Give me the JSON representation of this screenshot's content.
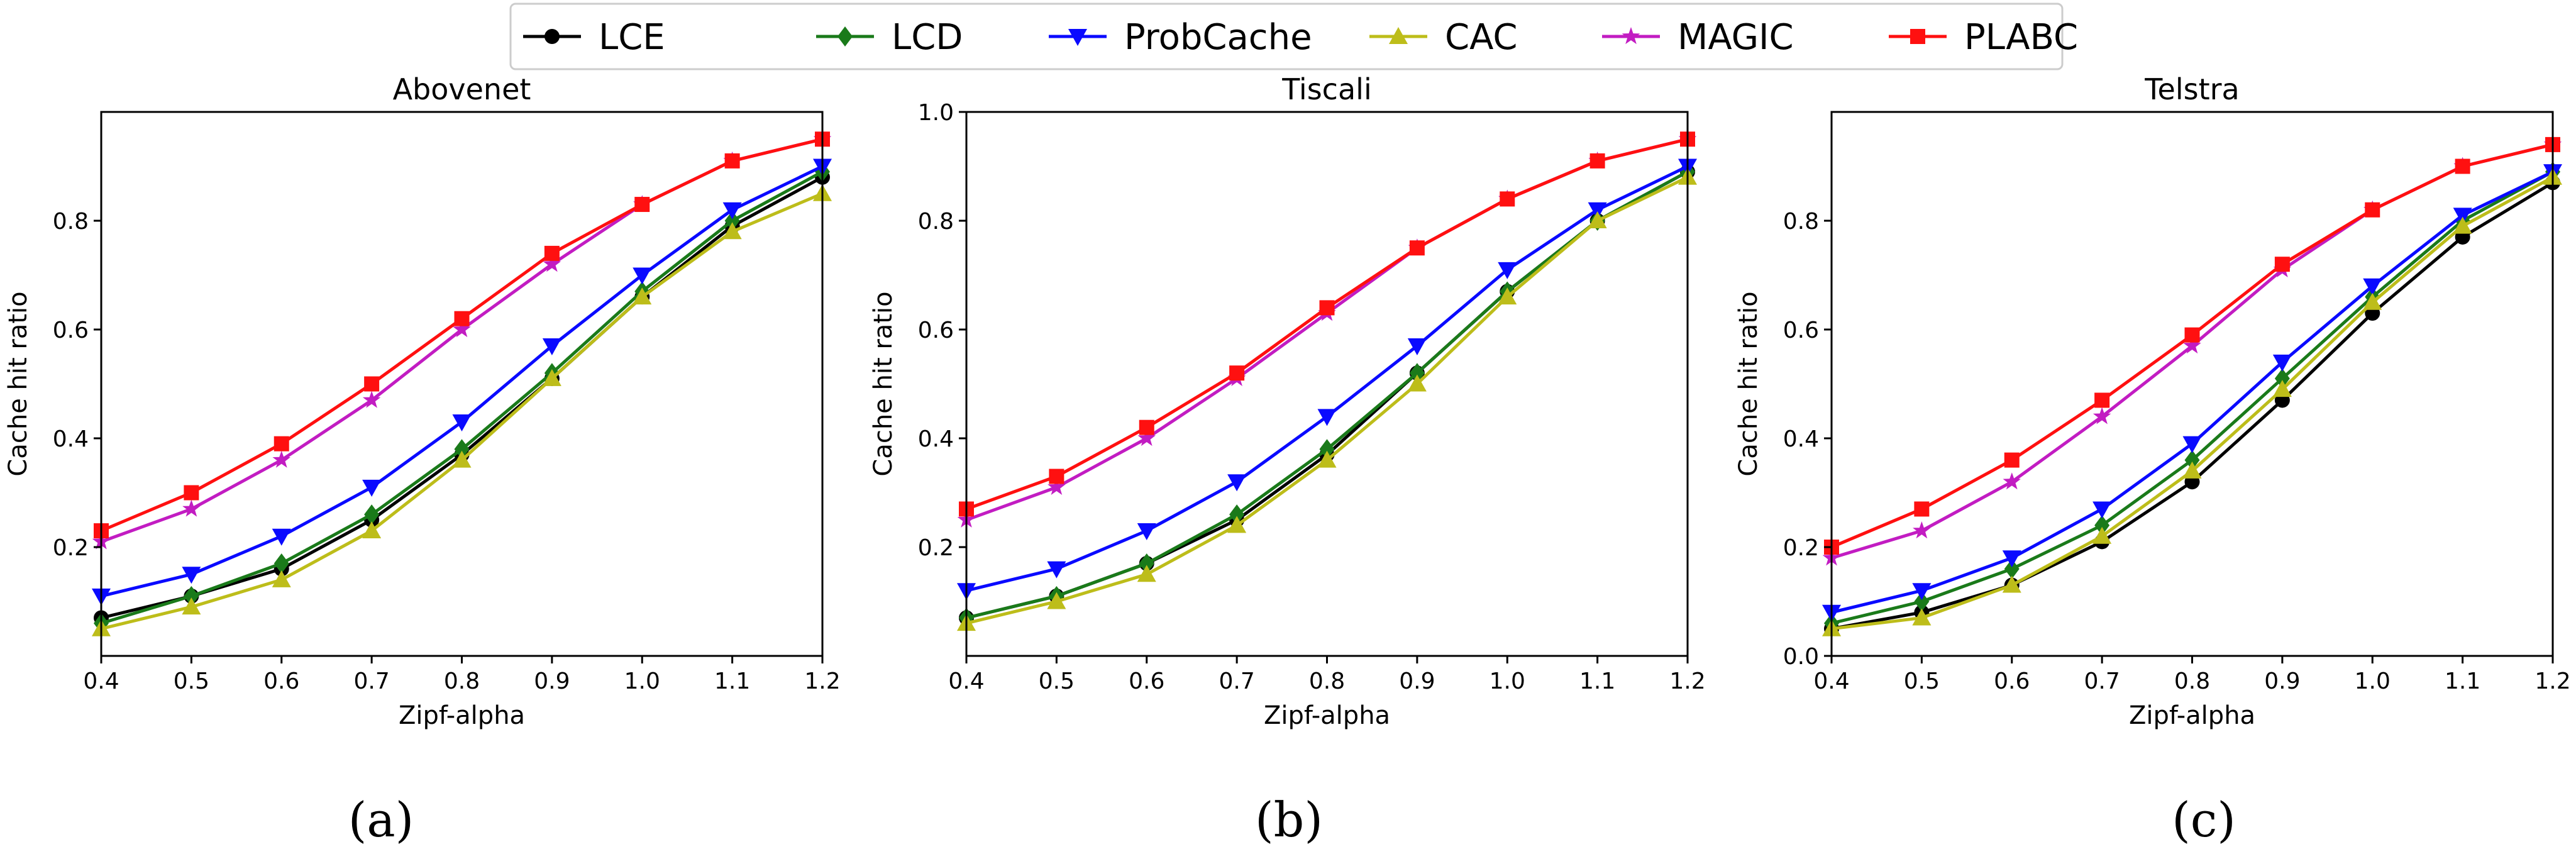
{
  "legend": [
    {
      "name": "LCE",
      "color": "#000000",
      "marker": "circle"
    },
    {
      "name": "LCD",
      "color": "#1a7a1a",
      "marker": "diamond"
    },
    {
      "name": "ProbCache",
      "color": "#0a0aff",
      "marker": "triangle-down"
    },
    {
      "name": "CAC",
      "color": "#bdbd1a",
      "marker": "triangle-up"
    },
    {
      "name": "MAGIC",
      "color": "#c21cc2",
      "marker": "star"
    },
    {
      "name": "PLABC",
      "color": "#ff1010",
      "marker": "square"
    }
  ],
  "chart_data": [
    {
      "type": "line",
      "title": "Abovenet",
      "caption": "(a)",
      "xlabel": "Zipf-alpha",
      "ylabel": "Cache hit ratio",
      "x": [
        0.4,
        0.5,
        0.6,
        0.7,
        0.8,
        0.9,
        1.0,
        1.1,
        1.2
      ],
      "xticks": [
        "0.4",
        "0.5",
        "0.6",
        "0.7",
        "0.8",
        "0.9",
        "1.0",
        "1.1",
        "1.2"
      ],
      "xlim": [
        0.4,
        1.2
      ],
      "ylim": [
        0.0,
        1.0
      ],
      "yticks": [
        "0.2",
        "0.4",
        "0.6",
        "0.8"
      ],
      "grid": false,
      "series": [
        {
          "name": "LCE",
          "values": [
            0.07,
            0.11,
            0.16,
            0.25,
            0.37,
            0.51,
            0.66,
            0.79,
            0.88
          ]
        },
        {
          "name": "LCD",
          "values": [
            0.06,
            0.11,
            0.17,
            0.26,
            0.38,
            0.52,
            0.67,
            0.8,
            0.89
          ]
        },
        {
          "name": "ProbCache",
          "values": [
            0.11,
            0.15,
            0.22,
            0.31,
            0.43,
            0.57,
            0.7,
            0.82,
            0.9
          ]
        },
        {
          "name": "CAC",
          "values": [
            0.05,
            0.09,
            0.14,
            0.23,
            0.36,
            0.51,
            0.66,
            0.78,
            0.85
          ]
        },
        {
          "name": "MAGIC",
          "values": [
            0.21,
            0.27,
            0.36,
            0.47,
            0.6,
            0.72,
            0.83,
            0.91,
            0.95
          ]
        },
        {
          "name": "PLABC",
          "values": [
            0.23,
            0.3,
            0.39,
            0.5,
            0.62,
            0.74,
            0.83,
            0.91,
            0.95
          ]
        }
      ]
    },
    {
      "type": "line",
      "title": "Tiscali",
      "caption": "(b)",
      "xlabel": "Zipf-alpha",
      "ylabel": "Cache hit ratio",
      "x": [
        0.4,
        0.5,
        0.6,
        0.7,
        0.8,
        0.9,
        1.0,
        1.1,
        1.2
      ],
      "xticks": [
        "0.4",
        "0.5",
        "0.6",
        "0.7",
        "0.8",
        "0.9",
        "1.0",
        "1.1",
        "1.2"
      ],
      "xlim": [
        0.4,
        1.2
      ],
      "ylim": [
        0.0,
        1.0
      ],
      "yticks": [
        "0.2",
        "0.4",
        "0.6",
        "0.8",
        "1.0"
      ],
      "grid": false,
      "series": [
        {
          "name": "LCE",
          "values": [
            0.07,
            0.11,
            0.17,
            0.25,
            0.37,
            0.52,
            0.67,
            0.8,
            0.89
          ]
        },
        {
          "name": "LCD",
          "values": [
            0.07,
            0.11,
            0.17,
            0.26,
            0.38,
            0.52,
            0.67,
            0.8,
            0.89
          ]
        },
        {
          "name": "ProbCache",
          "values": [
            0.12,
            0.16,
            0.23,
            0.32,
            0.44,
            0.57,
            0.71,
            0.82,
            0.9
          ]
        },
        {
          "name": "CAC",
          "values": [
            0.06,
            0.1,
            0.15,
            0.24,
            0.36,
            0.5,
            0.66,
            0.8,
            0.88
          ]
        },
        {
          "name": "MAGIC",
          "values": [
            0.25,
            0.31,
            0.4,
            0.51,
            0.63,
            0.75,
            0.84,
            0.91,
            0.95
          ]
        },
        {
          "name": "PLABC",
          "values": [
            0.27,
            0.33,
            0.42,
            0.52,
            0.64,
            0.75,
            0.84,
            0.91,
            0.95
          ]
        }
      ]
    },
    {
      "type": "line",
      "title": "Telstra",
      "caption": "(c)",
      "xlabel": "Zipf-alpha",
      "ylabel": "Cache hit ratio",
      "x": [
        0.4,
        0.5,
        0.6,
        0.7,
        0.8,
        0.9,
        1.0,
        1.1,
        1.2
      ],
      "xticks": [
        "0.4",
        "0.5",
        "0.6",
        "0.7",
        "0.8",
        "0.9",
        "1.0",
        "1.1",
        "1.2"
      ],
      "xlim": [
        0.4,
        1.2
      ],
      "ylim": [
        0.0,
        1.0
      ],
      "yticks": [
        "0.0",
        "0.2",
        "0.4",
        "0.6",
        "0.8"
      ],
      "grid": false,
      "series": [
        {
          "name": "LCE",
          "values": [
            0.05,
            0.08,
            0.13,
            0.21,
            0.32,
            0.47,
            0.63,
            0.77,
            0.87
          ]
        },
        {
          "name": "LCD",
          "values": [
            0.06,
            0.1,
            0.16,
            0.24,
            0.36,
            0.51,
            0.66,
            0.8,
            0.89
          ]
        },
        {
          "name": "ProbCache",
          "values": [
            0.08,
            0.12,
            0.18,
            0.27,
            0.39,
            0.54,
            0.68,
            0.81,
            0.89
          ]
        },
        {
          "name": "CAC",
          "values": [
            0.05,
            0.07,
            0.13,
            0.22,
            0.34,
            0.49,
            0.65,
            0.79,
            0.88
          ]
        },
        {
          "name": "MAGIC",
          "values": [
            0.18,
            0.23,
            0.32,
            0.44,
            0.57,
            0.71,
            0.82,
            0.9,
            0.94
          ]
        },
        {
          "name": "PLABC",
          "values": [
            0.2,
            0.27,
            0.36,
            0.47,
            0.59,
            0.72,
            0.82,
            0.9,
            0.94
          ]
        }
      ]
    }
  ]
}
